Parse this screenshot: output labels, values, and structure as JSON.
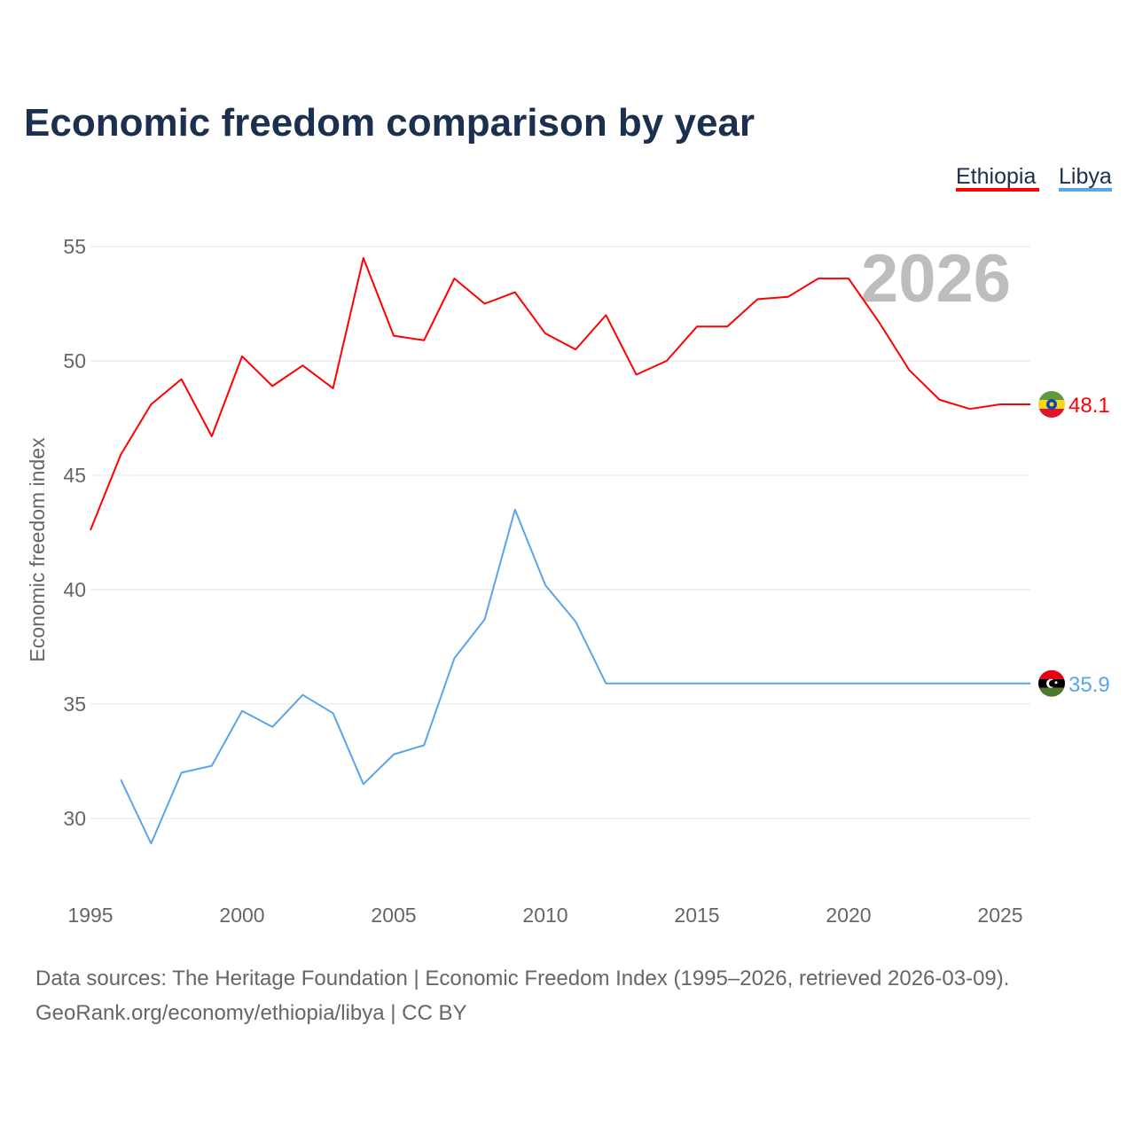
{
  "chart_data": {
    "type": "line",
    "title": "Economic freedom comparison by year",
    "ylabel": "Economic freedom index",
    "xlabel": "",
    "xlim": [
      1995,
      2026
    ],
    "ylim": [
      27.5,
      55
    ],
    "yticks": [
      30,
      35,
      40,
      45,
      50,
      55
    ],
    "xticks": [
      1995,
      2000,
      2005,
      2010,
      2015,
      2020,
      2025
    ],
    "grid": true,
    "legend_position": "top-right",
    "watermark_year": "2026",
    "series": [
      {
        "name": "Ethiopia",
        "color": "#ff0000",
        "end_label": "48.1",
        "x": [
          1995,
          1996,
          1997,
          1998,
          1999,
          2000,
          2001,
          2002,
          2003,
          2004,
          2005,
          2006,
          2007,
          2008,
          2009,
          2010,
          2011,
          2012,
          2013,
          2014,
          2015,
          2016,
          2017,
          2018,
          2019,
          2020,
          2021,
          2022,
          2023,
          2024,
          2025,
          2026
        ],
        "values": [
          42.6,
          45.9,
          48.1,
          49.2,
          46.7,
          50.2,
          48.9,
          49.8,
          48.8,
          54.5,
          51.1,
          50.9,
          53.6,
          52.5,
          53.0,
          51.2,
          50.5,
          52.0,
          49.4,
          50.0,
          51.5,
          51.5,
          52.7,
          52.8,
          53.6,
          53.6,
          51.7,
          49.6,
          48.3,
          47.9,
          48.1,
          48.1
        ]
      },
      {
        "name": "Libya",
        "color": "#5aa5ea",
        "end_label": "35.9",
        "x": [
          1996,
          1997,
          1998,
          1999,
          2000,
          2001,
          2002,
          2003,
          2004,
          2005,
          2006,
          2007,
          2008,
          2009,
          2010,
          2011,
          2012,
          2013,
          2014,
          2015,
          2016,
          2017,
          2018,
          2019,
          2020,
          2021,
          2022,
          2023,
          2024,
          2025,
          2026
        ],
        "values": [
          31.7,
          28.9,
          32.0,
          32.3,
          34.7,
          34.0,
          35.4,
          34.6,
          31.5,
          32.8,
          33.2,
          37.0,
          38.7,
          43.5,
          40.2,
          38.6,
          35.9,
          35.9,
          35.9,
          35.9,
          35.9,
          35.9,
          35.9,
          35.9,
          35.9,
          35.9,
          35.9,
          35.9,
          35.9,
          35.9,
          35.9
        ]
      }
    ]
  },
  "footer": {
    "source_line": "Data sources: The Heritage Foundation | Economic Freedom Index (1995–2026, retrieved 2026-03-09).",
    "credit_line": "GeoRank.org/economy/ethiopia/libya | CC BY"
  }
}
